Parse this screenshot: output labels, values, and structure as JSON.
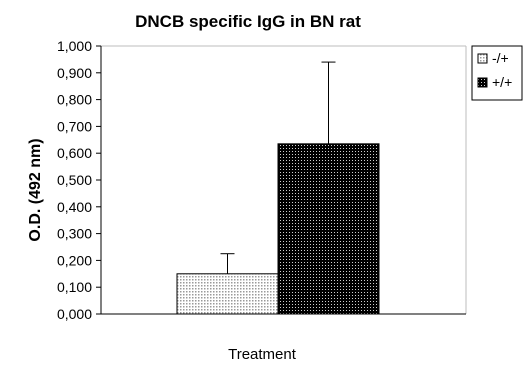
{
  "chart_data": {
    "type": "bar",
    "title": "DNCB specific IgG in BN rat",
    "xlabel": "Treatment",
    "ylabel": "O.D. (492 nm)",
    "ylim": [
      0,
      1.0
    ],
    "y_ticks": [
      "0,000",
      "0,100",
      "0,200",
      "0,300",
      "0,400",
      "0,500",
      "0,600",
      "0,700",
      "0,800",
      "0,900",
      "1,000"
    ],
    "grid": false,
    "legend_position": "right",
    "series": [
      {
        "name": "-/+",
        "value": 0.15,
        "error_upper": 0.225,
        "color": "#d8d8d8",
        "pattern": "light-dots"
      },
      {
        "name": "+/+",
        "value": 0.635,
        "error_upper": 0.94,
        "color": "#1a1a1a",
        "pattern": "dark-dots"
      }
    ]
  }
}
